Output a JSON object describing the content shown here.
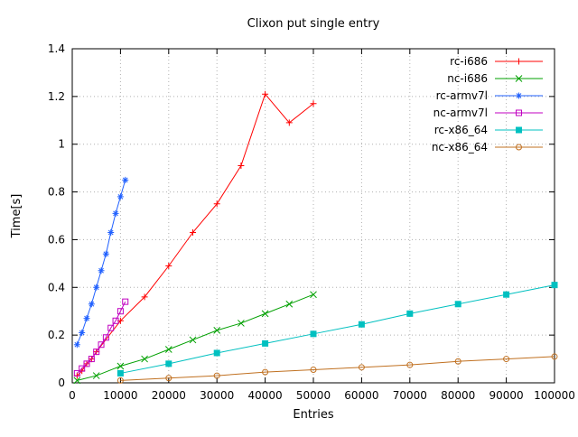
{
  "chart_data": {
    "type": "line",
    "title": "Clixon put single entry",
    "xlabel": "Entries",
    "ylabel": "Time[s]",
    "xlim": [
      0,
      100000
    ],
    "ylim": [
      0,
      1.4
    ],
    "xticks": [
      0,
      10000,
      20000,
      30000,
      40000,
      50000,
      60000,
      70000,
      80000,
      90000,
      100000
    ],
    "yticks": [
      0,
      0.2,
      0.4,
      0.6,
      0.8,
      1,
      1.2,
      1.4
    ],
    "grid": true,
    "legend_position": "top-right-inside",
    "grid_color": "#b0b0b0",
    "border_color": "#000000",
    "series": [
      {
        "name": "rc-i686",
        "color": "#ff0000",
        "marker": "plus",
        "points": [
          [
            1000,
            0.03
          ],
          [
            2000,
            0.05
          ],
          [
            3000,
            0.08
          ],
          [
            4000,
            0.1
          ],
          [
            5000,
            0.13
          ],
          [
            10000,
            0.26
          ],
          [
            15000,
            0.36
          ],
          [
            20000,
            0.49
          ],
          [
            25000,
            0.63
          ],
          [
            30000,
            0.75
          ],
          [
            35000,
            0.91
          ],
          [
            40000,
            1.21
          ],
          [
            45000,
            1.09
          ],
          [
            50000,
            1.17
          ]
        ]
      },
      {
        "name": "nc-i686",
        "color": "#00a000",
        "marker": "cross",
        "points": [
          [
            1000,
            0.01
          ],
          [
            5000,
            0.03
          ],
          [
            10000,
            0.07
          ],
          [
            15000,
            0.1
          ],
          [
            20000,
            0.14
          ],
          [
            25000,
            0.18
          ],
          [
            30000,
            0.22
          ],
          [
            35000,
            0.25
          ],
          [
            40000,
            0.29
          ],
          [
            45000,
            0.33
          ],
          [
            50000,
            0.37
          ]
        ]
      },
      {
        "name": "rc-armv7l",
        "color": "#2060ff",
        "marker": "asterisk",
        "points": [
          [
            1000,
            0.16
          ],
          [
            2000,
            0.21
          ],
          [
            3000,
            0.27
          ],
          [
            4000,
            0.33
          ],
          [
            5000,
            0.4
          ],
          [
            6000,
            0.47
          ],
          [
            7000,
            0.54
          ],
          [
            8000,
            0.63
          ],
          [
            9000,
            0.71
          ],
          [
            10000,
            0.78
          ],
          [
            11000,
            0.85
          ]
        ]
      },
      {
        "name": "nc-armv7l",
        "color": "#c000c0",
        "marker": "square-open",
        "points": [
          [
            1000,
            0.04
          ],
          [
            2000,
            0.06
          ],
          [
            3000,
            0.08
          ],
          [
            4000,
            0.1
          ],
          [
            5000,
            0.13
          ],
          [
            6000,
            0.16
          ],
          [
            7000,
            0.19
          ],
          [
            8000,
            0.23
          ],
          [
            9000,
            0.26
          ],
          [
            10000,
            0.3
          ],
          [
            11000,
            0.34
          ]
        ]
      },
      {
        "name": "rc-x86_64",
        "color": "#00c0c0",
        "marker": "square-filled",
        "points": [
          [
            10000,
            0.04
          ],
          [
            20000,
            0.08
          ],
          [
            30000,
            0.125
          ],
          [
            40000,
            0.165
          ],
          [
            50000,
            0.205
          ],
          [
            60000,
            0.245
          ],
          [
            70000,
            0.29
          ],
          [
            80000,
            0.33
          ],
          [
            90000,
            0.37
          ],
          [
            100000,
            0.41
          ]
        ]
      },
      {
        "name": "nc-x86_64",
        "color": "#c07020",
        "marker": "circle-open",
        "points": [
          [
            10000,
            0.01
          ],
          [
            20000,
            0.02
          ],
          [
            30000,
            0.03
          ],
          [
            40000,
            0.045
          ],
          [
            50000,
            0.055
          ],
          [
            60000,
            0.065
          ],
          [
            70000,
            0.075
          ],
          [
            80000,
            0.09
          ],
          [
            90000,
            0.1
          ],
          [
            100000,
            0.11
          ]
        ]
      }
    ]
  }
}
